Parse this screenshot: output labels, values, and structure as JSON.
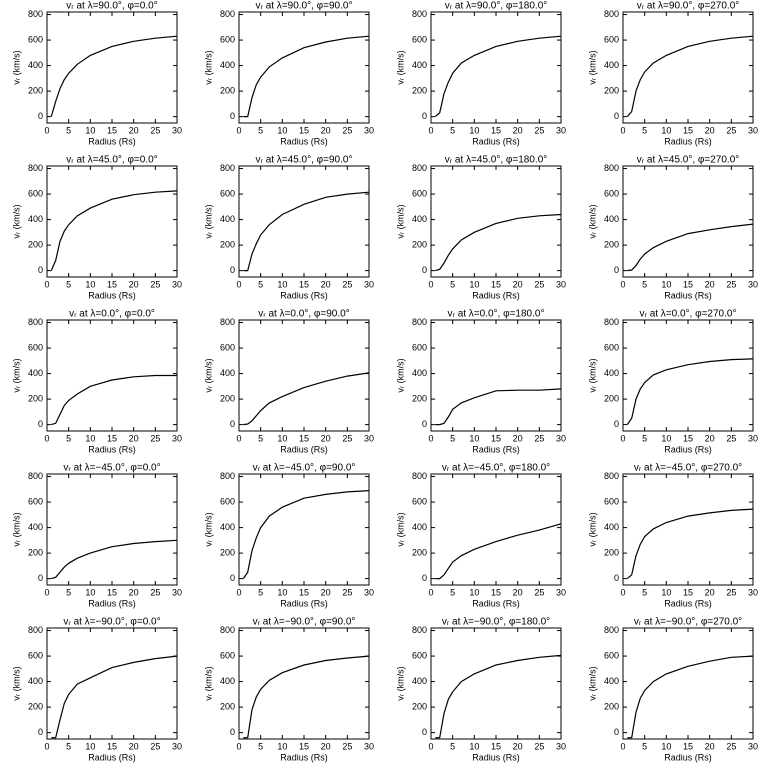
{
  "chart_data": [
    {
      "type": "line",
      "title": "vᵣ at λ=90.0°, φ=0.0°",
      "xlabel": "Radius (Rs)",
      "ylabel": "vᵣ (km/s)",
      "x": [
        1,
        2,
        3,
        4,
        5,
        7,
        10,
        15,
        20,
        25,
        30
      ],
      "values": [
        0,
        120,
        220,
        290,
        340,
        410,
        480,
        550,
        590,
        615,
        630
      ],
      "color": "#000000",
      "xlim": [
        0,
        30
      ],
      "ylim": [
        -50,
        820
      ],
      "xticks": [
        0,
        5,
        10,
        15,
        20,
        25,
        30
      ],
      "yticks": [
        0,
        200,
        400,
        600,
        800
      ]
    },
    {
      "type": "line",
      "title": "vᵣ at λ=90.0°, φ=90.0°",
      "xlabel": "Radius (Rs)",
      "ylabel": "vᵣ (km/s)",
      "x": [
        1,
        2,
        3,
        4,
        5,
        7,
        10,
        15,
        20,
        25,
        30
      ],
      "values": [
        0,
        0,
        150,
        250,
        310,
        390,
        460,
        540,
        585,
        615,
        630
      ],
      "color": "#000000",
      "xlim": [
        0,
        30
      ],
      "ylim": [
        -50,
        820
      ],
      "xticks": [
        0,
        5,
        10,
        15,
        20,
        25,
        30
      ],
      "yticks": [
        0,
        200,
        400,
        600,
        800
      ]
    },
    {
      "type": "line",
      "title": "vᵣ at λ=90.0°, φ=180.0°",
      "xlabel": "Radius (Rs)",
      "ylabel": "vᵣ (km/s)",
      "x": [
        1,
        2,
        3,
        4,
        5,
        7,
        10,
        15,
        20,
        25,
        30
      ],
      "values": [
        0,
        30,
        180,
        270,
        340,
        420,
        480,
        550,
        590,
        615,
        630
      ],
      "color": "#000000",
      "xlim": [
        0,
        30
      ],
      "ylim": [
        -50,
        820
      ],
      "xticks": [
        0,
        5,
        10,
        15,
        20,
        25,
        30
      ],
      "yticks": [
        0,
        200,
        400,
        600,
        800
      ]
    },
    {
      "type": "line",
      "title": "vᵣ at λ=90.0°, φ=270.0°",
      "xlabel": "Radius (Rs)",
      "ylabel": "vᵣ (km/s)",
      "x": [
        1,
        2,
        3,
        4,
        5,
        7,
        10,
        15,
        20,
        25,
        30
      ],
      "values": [
        0,
        40,
        200,
        290,
        350,
        420,
        480,
        550,
        590,
        615,
        630
      ],
      "color": "#000000",
      "xlim": [
        0,
        30
      ],
      "ylim": [
        -50,
        820
      ],
      "xticks": [
        0,
        5,
        10,
        15,
        20,
        25,
        30
      ],
      "yticks": [
        0,
        200,
        400,
        600,
        800
      ]
    },
    {
      "type": "line",
      "title": "vᵣ at λ=45.0°, φ=0.0°",
      "xlabel": "Radius (Rs)",
      "ylabel": "vᵣ (km/s)",
      "x": [
        1,
        2,
        3,
        4,
        5,
        7,
        10,
        15,
        20,
        25,
        30
      ],
      "values": [
        0,
        80,
        230,
        310,
        360,
        430,
        490,
        560,
        595,
        615,
        625
      ],
      "color": "#000000",
      "xlim": [
        0,
        30
      ],
      "ylim": [
        -50,
        820
      ],
      "xticks": [
        0,
        5,
        10,
        15,
        20,
        25,
        30
      ],
      "yticks": [
        0,
        200,
        400,
        600,
        800
      ]
    },
    {
      "type": "line",
      "title": "vᵣ at λ=45.0°, φ=90.0°",
      "xlabel": "Radius (Rs)",
      "ylabel": "vᵣ (km/s)",
      "x": [
        1,
        2,
        3,
        4,
        5,
        7,
        10,
        15,
        20,
        25,
        30
      ],
      "values": [
        0,
        0,
        130,
        210,
        280,
        360,
        440,
        520,
        575,
        600,
        615
      ],
      "color": "#000000",
      "xlim": [
        0,
        30
      ],
      "ylim": [
        -50,
        820
      ],
      "xticks": [
        0,
        5,
        10,
        15,
        20,
        25,
        30
      ],
      "yticks": [
        0,
        200,
        400,
        600,
        800
      ]
    },
    {
      "type": "line",
      "title": "vᵣ at λ=45.0°, φ=180.0°",
      "xlabel": "Radius (Rs)",
      "ylabel": "vᵣ (km/s)",
      "x": [
        1,
        2,
        3,
        4,
        5,
        7,
        10,
        15,
        20,
        25,
        30
      ],
      "values": [
        0,
        10,
        60,
        120,
        170,
        240,
        300,
        370,
        410,
        430,
        440
      ],
      "color": "#000000",
      "xlim": [
        0,
        30
      ],
      "ylim": [
        -50,
        820
      ],
      "xticks": [
        0,
        5,
        10,
        15,
        20,
        25,
        30
      ],
      "yticks": [
        0,
        200,
        400,
        600,
        800
      ]
    },
    {
      "type": "line",
      "title": "vᵣ at λ=45.0°, φ=270.0°",
      "xlabel": "Radius (Rs)",
      "ylabel": "vᵣ (km/s)",
      "x": [
        1,
        2,
        3,
        4,
        5,
        7,
        10,
        15,
        20,
        25,
        30
      ],
      "values": [
        0,
        5,
        40,
        90,
        130,
        180,
        230,
        290,
        320,
        345,
        365
      ],
      "color": "#000000",
      "xlim": [
        0,
        30
      ],
      "ylim": [
        -50,
        820
      ],
      "xticks": [
        0,
        5,
        10,
        15,
        20,
        25,
        30
      ],
      "yticks": [
        0,
        200,
        400,
        600,
        800
      ]
    },
    {
      "type": "line",
      "title": "vᵣ at λ=0.0°, φ=0.0°",
      "xlabel": "Radius (Rs)",
      "ylabel": "vᵣ (km/s)",
      "x": [
        1,
        2,
        3,
        4,
        5,
        7,
        10,
        15,
        20,
        25,
        30
      ],
      "values": [
        0,
        10,
        80,
        150,
        190,
        240,
        300,
        350,
        375,
        385,
        385
      ],
      "color": "#000000",
      "xlim": [
        0,
        30
      ],
      "ylim": [
        -50,
        820
      ],
      "xticks": [
        0,
        5,
        10,
        15,
        20,
        25,
        30
      ],
      "yticks": [
        0,
        200,
        400,
        600,
        800
      ]
    },
    {
      "type": "line",
      "title": "vᵣ at λ=0.0°, φ=90.0°",
      "xlabel": "Radius (Rs)",
      "ylabel": "vᵣ (km/s)",
      "x": [
        1,
        2,
        3,
        4,
        5,
        7,
        10,
        15,
        20,
        25,
        30
      ],
      "values": [
        0,
        5,
        30,
        70,
        110,
        170,
        220,
        290,
        340,
        380,
        405
      ],
      "color": "#000000",
      "xlim": [
        0,
        30
      ],
      "ylim": [
        -50,
        820
      ],
      "xticks": [
        0,
        5,
        10,
        15,
        20,
        25,
        30
      ],
      "yticks": [
        0,
        200,
        400,
        600,
        800
      ]
    },
    {
      "type": "line",
      "title": "vᵣ at λ=0.0°, φ=180.0°",
      "xlabel": "Radius (Rs)",
      "ylabel": "vᵣ (km/s)",
      "x": [
        1,
        2,
        3,
        4,
        5,
        7,
        10,
        15,
        20,
        25,
        30
      ],
      "values": [
        0,
        0,
        10,
        60,
        120,
        170,
        210,
        265,
        270,
        270,
        280
      ],
      "color": "#000000",
      "xlim": [
        0,
        30
      ],
      "ylim": [
        -50,
        820
      ],
      "xticks": [
        0,
        5,
        10,
        15,
        20,
        25,
        30
      ],
      "yticks": [
        0,
        200,
        400,
        600,
        800
      ]
    },
    {
      "type": "line",
      "title": "vᵣ at λ=0.0°, φ=270.0°",
      "xlabel": "Radius (Rs)",
      "ylabel": "vᵣ (km/s)",
      "x": [
        1,
        2,
        3,
        4,
        5,
        7,
        10,
        15,
        20,
        25,
        30
      ],
      "values": [
        0,
        50,
        200,
        280,
        330,
        390,
        430,
        470,
        495,
        510,
        515
      ],
      "color": "#000000",
      "xlim": [
        0,
        30
      ],
      "ylim": [
        -50,
        820
      ],
      "xticks": [
        0,
        5,
        10,
        15,
        20,
        25,
        30
      ],
      "yticks": [
        0,
        200,
        400,
        600,
        800
      ]
    },
    {
      "type": "line",
      "title": "vᵣ at λ=−45.0°, φ=0.0°",
      "xlabel": "Radius (Rs)",
      "ylabel": "vᵣ (km/s)",
      "x": [
        1,
        2,
        3,
        4,
        5,
        7,
        10,
        15,
        20,
        25,
        30
      ],
      "values": [
        0,
        10,
        50,
        90,
        120,
        160,
        200,
        250,
        275,
        290,
        300
      ],
      "color": "#000000",
      "xlim": [
        0,
        30
      ],
      "ylim": [
        -50,
        820
      ],
      "xticks": [
        0,
        5,
        10,
        15,
        20,
        25,
        30
      ],
      "yticks": [
        0,
        200,
        400,
        600,
        800
      ]
    },
    {
      "type": "line",
      "title": "vᵣ at λ=−45.0°, φ=90.0°",
      "xlabel": "Radius (Rs)",
      "ylabel": "vᵣ (km/s)",
      "x": [
        1,
        2,
        3,
        4,
        5,
        7,
        10,
        15,
        20,
        25,
        30
      ],
      "values": [
        0,
        50,
        220,
        320,
        400,
        490,
        560,
        630,
        660,
        680,
        690
      ],
      "color": "#000000",
      "xlim": [
        0,
        30
      ],
      "ylim": [
        -50,
        820
      ],
      "xticks": [
        0,
        5,
        10,
        15,
        20,
        25,
        30
      ],
      "yticks": [
        0,
        200,
        400,
        600,
        800
      ]
    },
    {
      "type": "line",
      "title": "vᵣ at λ=−45.0°, φ=180.0°",
      "xlabel": "Radius (Rs)",
      "ylabel": "vᵣ (km/s)",
      "x": [
        1,
        2,
        3,
        4,
        5,
        7,
        10,
        15,
        20,
        25,
        30
      ],
      "values": [
        0,
        0,
        30,
        80,
        130,
        180,
        230,
        290,
        340,
        380,
        430
      ],
      "color": "#000000",
      "xlim": [
        0,
        30
      ],
      "ylim": [
        -50,
        820
      ],
      "xticks": [
        0,
        5,
        10,
        15,
        20,
        25,
        30
      ],
      "yticks": [
        0,
        200,
        400,
        600,
        800
      ]
    },
    {
      "type": "line",
      "title": "vᵣ at λ=−45.0°, φ=270.0°",
      "xlabel": "Radius (Rs)",
      "ylabel": "vᵣ (km/s)",
      "x": [
        1,
        2,
        3,
        4,
        5,
        7,
        10,
        15,
        20,
        25,
        30
      ],
      "values": [
        0,
        30,
        180,
        270,
        330,
        390,
        440,
        490,
        515,
        535,
        545
      ],
      "color": "#000000",
      "xlim": [
        0,
        30
      ],
      "ylim": [
        -50,
        820
      ],
      "xticks": [
        0,
        5,
        10,
        15,
        20,
        25,
        30
      ],
      "yticks": [
        0,
        200,
        400,
        600,
        800
      ]
    },
    {
      "type": "line",
      "title": "vᵣ at λ=−90.0°, φ=0.0°",
      "xlabel": "Radius (Rs)",
      "ylabel": "vᵣ (km/s)",
      "x": [
        1,
        2,
        3,
        4,
        5,
        7,
        10,
        15,
        20,
        25,
        30
      ],
      "values": [
        -40,
        -40,
        100,
        230,
        300,
        380,
        430,
        510,
        550,
        580,
        600
      ],
      "color": "#000000",
      "xlim": [
        0,
        30
      ],
      "ylim": [
        -50,
        820
      ],
      "xticks": [
        0,
        5,
        10,
        15,
        20,
        25,
        30
      ],
      "yticks": [
        0,
        200,
        400,
        600,
        800
      ]
    },
    {
      "type": "line",
      "title": "vᵣ at λ=−90.0°, φ=90.0°",
      "xlabel": "Radius (Rs)",
      "ylabel": "vᵣ (km/s)",
      "x": [
        1,
        2,
        3,
        4,
        5,
        7,
        10,
        15,
        20,
        25,
        30
      ],
      "values": [
        -40,
        -40,
        180,
        280,
        340,
        410,
        470,
        530,
        565,
        585,
        600
      ],
      "color": "#000000",
      "xlim": [
        0,
        30
      ],
      "ylim": [
        -50,
        820
      ],
      "xticks": [
        0,
        5,
        10,
        15,
        20,
        25,
        30
      ],
      "yticks": [
        0,
        200,
        400,
        600,
        800
      ]
    },
    {
      "type": "line",
      "title": "vᵣ at λ=−90.0°, φ=180.0°",
      "xlabel": "Radius (Rs)",
      "ylabel": "vᵣ (km/s)",
      "x": [
        1,
        2,
        3,
        4,
        5,
        7,
        10,
        15,
        20,
        25,
        30
      ],
      "values": [
        -40,
        -40,
        150,
        260,
        320,
        400,
        460,
        530,
        565,
        590,
        605
      ],
      "color": "#000000",
      "xlim": [
        0,
        30
      ],
      "ylim": [
        -50,
        820
      ],
      "xticks": [
        0,
        5,
        10,
        15,
        20,
        25,
        30
      ],
      "yticks": [
        0,
        200,
        400,
        600,
        800
      ]
    },
    {
      "type": "line",
      "title": "vᵣ at λ=−90.0°, φ=270.0°",
      "xlabel": "Radius (Rs)",
      "ylabel": "vᵣ (km/s)",
      "x": [
        1,
        2,
        3,
        4,
        5,
        7,
        10,
        15,
        20,
        25,
        30
      ],
      "values": [
        -40,
        -40,
        160,
        270,
        330,
        400,
        460,
        520,
        560,
        590,
        600
      ],
      "color": "#000000",
      "xlim": [
        0,
        30
      ],
      "ylim": [
        -50,
        820
      ],
      "xticks": [
        0,
        5,
        10,
        15,
        20,
        25,
        30
      ],
      "yticks": [
        0,
        200,
        400,
        600,
        800
      ]
    }
  ]
}
